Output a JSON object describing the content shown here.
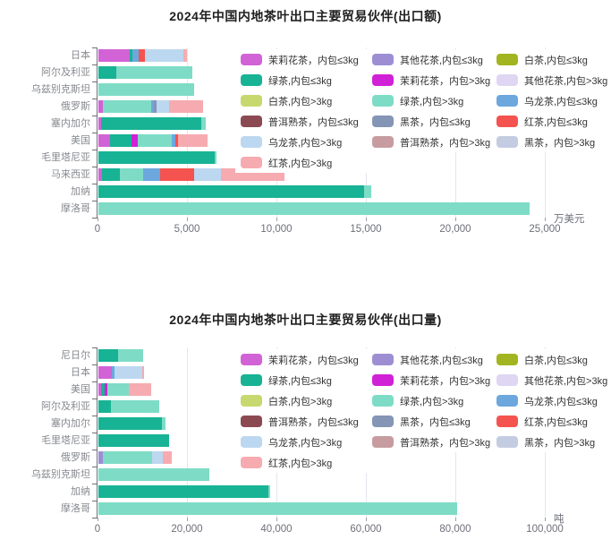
{
  "series_colors": {
    "茉莉花茶，内包≤3kg": "#d163d6",
    "其他花茶,内包≤3kg": "#9d8ed4",
    "白茶,内包≤3kg": "#a2b520",
    "绿茶,内包≤3kg": "#17b394",
    "茉莉花茶，内包>3kg": "#d121d6",
    "其他花茶,内包>3kg": "#ded6f2",
    "白茶,内包>3kg": "#c7d86f",
    "绿茶,内包>3kg": "#7edcc6",
    "乌龙茶,内包≤3kg": "#6ca7de",
    "普洱熟茶，内包≤3kg": "#8b4a52",
    "黑茶，内包≤3kg": "#8495b5",
    "红茶,内包≤3kg": "#f4534f",
    "乌龙茶,内包>3kg": "#bcd7f0",
    "普洱熟茶，内包>3kg": "#c79ca1",
    "黑茶，内包>3kg": "#c4cce1",
    "红茶,内包>3kg": "#f6abb0"
  },
  "legend": {
    "items": [
      "茉莉花茶，内包≤3kg",
      "其他花茶,内包≤3kg",
      "白茶,内包≤3kg",
      "绿茶,内包≤3kg",
      "茉莉花茶，内包>3kg",
      "其他花茶,内包>3kg",
      "白茶,内包>3kg",
      "绿茶,内包>3kg",
      "乌龙茶,内包≤3kg",
      "普洱熟茶，内包≤3kg",
      "黑茶，内包≤3kg",
      "红茶,内包≤3kg",
      "乌龙茶,内包>3kg",
      "普洱熟茶，内包>3kg",
      "黑茶，内包>3kg",
      "红茶,内包>3kg"
    ]
  },
  "chart_data": [
    {
      "type": "bar",
      "orientation": "horizontal",
      "stacked": true,
      "title": "2024年中国内地茶叶出口主要贸易伙伴(出口额)",
      "unit": "万美元",
      "xlim": [
        0,
        25000
      ],
      "xticks": [
        0,
        5000,
        10000,
        15000,
        20000,
        25000
      ],
      "xtick_labels": [
        "0",
        "5,000",
        "10,000",
        "15,000",
        "20,000",
        "25,000"
      ],
      "grid": true,
      "legend_position": "top-right-overlay",
      "categories": [
        "日本",
        "阿尔及利亚",
        "乌兹别克斯坦",
        "俄罗斯",
        "塞内加尔",
        "美国",
        "毛里塔尼亚",
        "马来西亚",
        "加纳",
        "摩洛哥"
      ],
      "bars": [
        {
          "category": "日本",
          "total": 4950,
          "segments": [
            {
              "series": "茉莉花茶，内包≤3kg",
              "value": 1750
            },
            {
              "series": "绿茶,内包≤3kg",
              "value": 150
            },
            {
              "series": "乌龙茶,内包≤3kg",
              "value": 350
            },
            {
              "series": "红茶,内包≤3kg",
              "value": 350
            },
            {
              "series": "乌龙茶,内包>3kg",
              "value": 2150
            },
            {
              "series": "红茶,内包>3kg",
              "value": 200
            }
          ]
        },
        {
          "category": "阿尔及利亚",
          "total": 5250,
          "segments": [
            {
              "series": "绿茶,内包≤3kg",
              "value": 1000
            },
            {
              "series": "绿茶,内包>3kg",
              "value": 4250
            }
          ]
        },
        {
          "category": "乌兹别克斯坦",
          "total": 5350,
          "segments": [
            {
              "series": "绿茶,内包>3kg",
              "value": 5350
            }
          ]
        },
        {
          "category": "俄罗斯",
          "total": 5850,
          "segments": [
            {
              "series": "茉莉花茶，内包≤3kg",
              "value": 250
            },
            {
              "series": "绿茶,内包>3kg",
              "value": 2700
            },
            {
              "series": "乌龙茶,内包≤3kg",
              "value": 150
            },
            {
              "series": "黑茶，内包≤3kg",
              "value": 150
            },
            {
              "series": "乌龙茶,内包>3kg",
              "value": 700
            },
            {
              "series": "红茶,内包>3kg",
              "value": 1900
            }
          ]
        },
        {
          "category": "塞内加尔",
          "total": 6000,
          "segments": [
            {
              "series": "茉莉花茶，内包≤3kg",
              "value": 150
            },
            {
              "series": "绿茶,内包≤3kg",
              "value": 5600
            },
            {
              "series": "绿茶,内包>3kg",
              "value": 250
            }
          ]
        },
        {
          "category": "美国",
          "total": 6100,
          "segments": [
            {
              "series": "茉莉花茶，内包≤3kg",
              "value": 650
            },
            {
              "series": "绿茶,内包≤3kg",
              "value": 1200
            },
            {
              "series": "茉莉花茶，内包>3kg",
              "value": 350
            },
            {
              "series": "绿茶,内包>3kg",
              "value": 1900
            },
            {
              "series": "乌龙茶,内包≤3kg",
              "value": 200
            },
            {
              "series": "红茶,内包≤3kg",
              "value": 150
            },
            {
              "series": "红茶,内包>3kg",
              "value": 1650
            }
          ]
        },
        {
          "category": "毛里塔尼亚",
          "total": 6600,
          "segments": [
            {
              "series": "绿茶,内包≤3kg",
              "value": 6500
            },
            {
              "series": "绿茶,内包>3kg",
              "value": 100
            }
          ]
        },
        {
          "category": "马来西亚",
          "total": 10400,
          "segments": [
            {
              "series": "茉莉花茶，内包≤3kg",
              "value": 200
            },
            {
              "series": "绿茶,内包≤3kg",
              "value": 1000
            },
            {
              "series": "绿茶,内包>3kg",
              "value": 1300
            },
            {
              "series": "乌龙茶,内包≤3kg",
              "value": 950
            },
            {
              "series": "红茶,内包≤3kg",
              "value": 1900
            },
            {
              "series": "乌龙茶,内包>3kg",
              "value": 1500
            },
            {
              "series": "红茶,内包>3kg",
              "value": 3550
            }
          ]
        },
        {
          "category": "加纳",
          "total": 15250,
          "segments": [
            {
              "series": "绿茶,内包≤3kg",
              "value": 14850
            },
            {
              "series": "绿茶,内包>3kg",
              "value": 400
            }
          ]
        },
        {
          "category": "摩洛哥",
          "total": 24100,
          "segments": [
            {
              "series": "绿茶,内包>3kg",
              "value": 24100
            }
          ]
        }
      ]
    },
    {
      "type": "bar",
      "orientation": "horizontal",
      "stacked": true,
      "title": "2024年中国内地茶叶出口主要贸易伙伴(出口量)",
      "unit": "吨",
      "xlim": [
        0,
        100000
      ],
      "xticks": [
        0,
        20000,
        40000,
        60000,
        80000,
        100000
      ],
      "xtick_labels": [
        "0",
        "20,000",
        "40,000",
        "60,000",
        "80,000",
        "100,000"
      ],
      "grid": true,
      "legend_position": "top-right-overlay",
      "categories": [
        "尼日尔",
        "日本",
        "美国",
        "阿尔及利亚",
        "塞内加尔",
        "毛里塔尼亚",
        "俄罗斯",
        "乌兹别克斯坦",
        "加纳",
        "摩洛哥"
      ],
      "bars": [
        {
          "category": "尼日尔",
          "total": 10000,
          "segments": [
            {
              "series": "绿茶,内包≤3kg",
              "value": 4400
            },
            {
              "series": "绿茶,内包>3kg",
              "value": 5600
            }
          ]
        },
        {
          "category": "日本",
          "total": 10300,
          "segments": [
            {
              "series": "茉莉花茶，内包≤3kg",
              "value": 3000
            },
            {
              "series": "乌龙茶,内包≤3kg",
              "value": 600
            },
            {
              "series": "乌龙茶,内包>3kg",
              "value": 6200
            },
            {
              "series": "红茶,内包>3kg",
              "value": 500
            }
          ]
        },
        {
          "category": "美国",
          "total": 11800,
          "segments": [
            {
              "series": "茉莉花茶，内包≤3kg",
              "value": 600
            },
            {
              "series": "绿茶,内包≤3kg",
              "value": 800
            },
            {
              "series": "茉莉花茶，内包>3kg",
              "value": 600
            },
            {
              "series": "绿茶,内包>3kg",
              "value": 4800
            },
            {
              "series": "红茶,内包>3kg",
              "value": 5000
            }
          ]
        },
        {
          "category": "阿尔及利亚",
          "total": 13600,
          "segments": [
            {
              "series": "绿茶,内包≤3kg",
              "value": 2800
            },
            {
              "series": "绿茶,内包>3kg",
              "value": 10800
            }
          ]
        },
        {
          "category": "塞内加尔",
          "total": 15000,
          "segments": [
            {
              "series": "绿茶,内包≤3kg",
              "value": 14200
            },
            {
              "series": "绿茶,内包>3kg",
              "value": 800
            }
          ]
        },
        {
          "category": "毛里塔尼亚",
          "total": 15800,
          "segments": [
            {
              "series": "绿茶,内包≤3kg",
              "value": 15800
            }
          ]
        },
        {
          "category": "俄罗斯",
          "total": 16400,
          "segments": [
            {
              "series": "其他花茶,内包≤3kg",
              "value": 900
            },
            {
              "series": "绿茶,内包>3kg",
              "value": 11100
            },
            {
              "series": "乌龙茶,内包>3kg",
              "value": 2400
            },
            {
              "series": "红茶,内包>3kg",
              "value": 2000
            }
          ]
        },
        {
          "category": "乌兹别克斯坦",
          "total": 24800,
          "segments": [
            {
              "series": "绿茶,内包>3kg",
              "value": 24800
            }
          ]
        },
        {
          "category": "加纳",
          "total": 38400,
          "segments": [
            {
              "series": "绿茶,内包≤3kg",
              "value": 38000
            },
            {
              "series": "绿茶,内包>3kg",
              "value": 400
            }
          ]
        },
        {
          "category": "摩洛哥",
          "total": 80200,
          "segments": [
            {
              "series": "绿茶,内包>3kg",
              "value": 80200
            }
          ]
        }
      ]
    }
  ]
}
